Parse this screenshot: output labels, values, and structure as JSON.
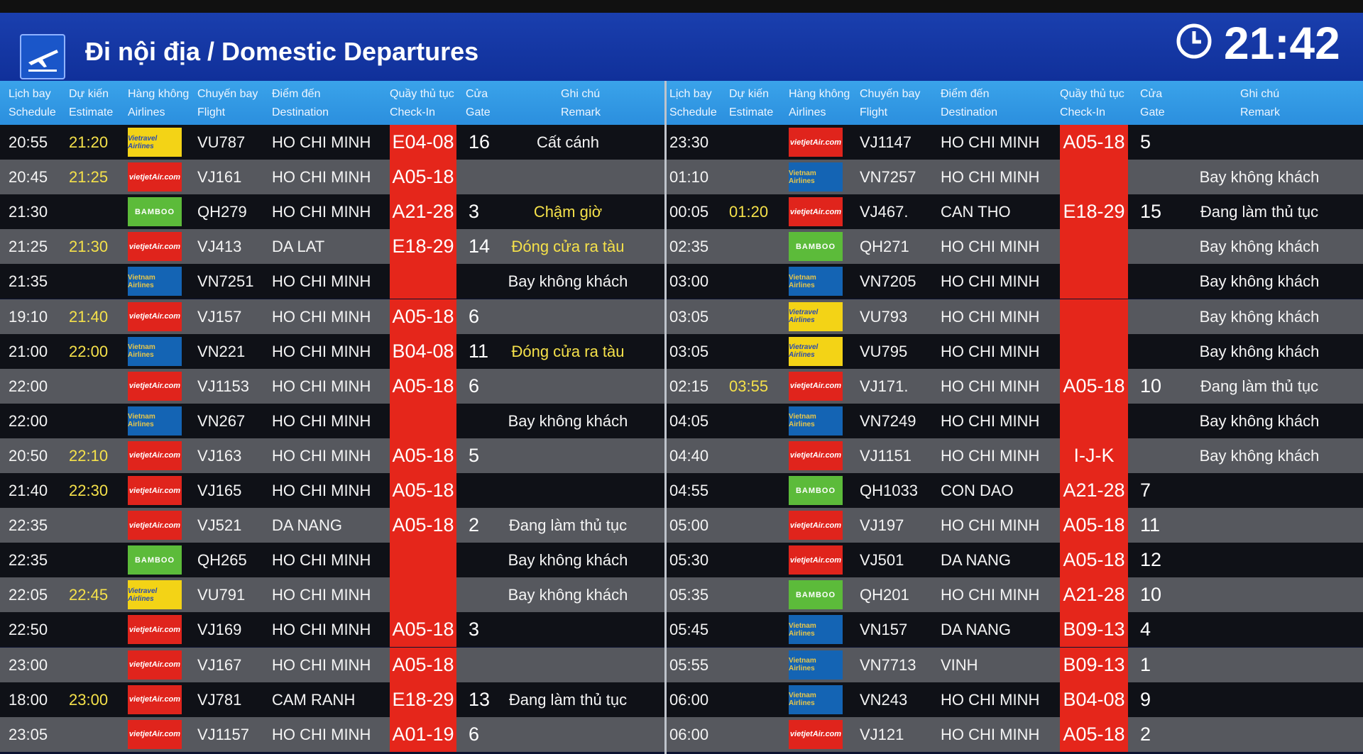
{
  "header": {
    "title": "Đi nội địa / Domestic Departures",
    "clock": "21:42"
  },
  "columns": {
    "schedule": [
      "Lịch bay",
      "Schedule"
    ],
    "estimate": [
      "Dự kiến",
      "Estimate"
    ],
    "airline": [
      "Hàng không",
      "Airlines"
    ],
    "flight": [
      "Chuyến bay",
      "Flight"
    ],
    "destination": [
      "Điểm đến",
      "Destination"
    ],
    "checkin": [
      "Quầy thủ tục",
      "Check-In"
    ],
    "gate": [
      "Cửa",
      "Gate"
    ],
    "remark": [
      "Ghi chú",
      "Remark"
    ]
  },
  "airline_logos": {
    "vj": "vietjetAir.com",
    "vn": "Vietnam Airlines",
    "qh": "BAMBOO",
    "vu": "Vietravel Airlines"
  },
  "colors": {
    "header_blue": "#10309a",
    "column_header_blue": "#2b8fde",
    "checkin_red": "#e5261b",
    "estimate_yellow": "#f5e14a",
    "row_dark": "#0f1117",
    "row_light": "#56585e"
  },
  "left_flights": [
    {
      "schedule": "20:55",
      "estimate": "21:20",
      "airline": "vu",
      "flight": "VU787",
      "destination": "HO CHI MINH",
      "checkin": "E04-08",
      "gate": "16",
      "remark": "Cất cánh",
      "remark_color": "white"
    },
    {
      "schedule": "20:45",
      "estimate": "21:25",
      "airline": "vj",
      "flight": "VJ161",
      "destination": "HO CHI MINH",
      "checkin": "A05-18",
      "gate": "",
      "remark": "",
      "remark_color": "white"
    },
    {
      "schedule": "21:30",
      "estimate": "",
      "airline": "qh",
      "flight": "QH279",
      "destination": "HO CHI MINH",
      "checkin": "A21-28",
      "gate": "3",
      "remark": "Chậm giờ",
      "remark_color": "yellow"
    },
    {
      "schedule": "21:25",
      "estimate": "21:30",
      "airline": "vj",
      "flight": "VJ413",
      "destination": "DA LAT",
      "checkin": "E18-29",
      "gate": "14",
      "remark": "Đóng cửa ra tàu",
      "remark_color": "yellow"
    },
    {
      "schedule": "21:35",
      "estimate": "",
      "airline": "vn",
      "flight": "VN7251",
      "destination": "HO CHI MINH",
      "checkin": "",
      "gate": "",
      "remark": "Bay không khách",
      "remark_color": "white"
    },
    {
      "schedule": "19:10",
      "estimate": "21:40",
      "airline": "vj",
      "flight": "VJ157",
      "destination": "HO CHI MINH",
      "checkin": "A05-18",
      "gate": "6",
      "remark": "",
      "remark_color": "white"
    },
    {
      "schedule": "21:00",
      "estimate": "22:00",
      "airline": "vn",
      "flight": "VN221",
      "destination": "HO CHI MINH",
      "checkin": "B04-08",
      "gate": "11",
      "remark": "Đóng cửa ra tàu",
      "remark_color": "yellow"
    },
    {
      "schedule": "22:00",
      "estimate": "",
      "airline": "vj",
      "flight": "VJ1153",
      "destination": "HO CHI MINH",
      "checkin": "A05-18",
      "gate": "6",
      "remark": "",
      "remark_color": "white"
    },
    {
      "schedule": "22:00",
      "estimate": "",
      "airline": "vn",
      "flight": "VN267",
      "destination": "HO CHI MINH",
      "checkin": "",
      "gate": "",
      "remark": "Bay không khách",
      "remark_color": "white"
    },
    {
      "schedule": "20:50",
      "estimate": "22:10",
      "airline": "vj",
      "flight": "VJ163",
      "destination": "HO CHI MINH",
      "checkin": "A05-18",
      "gate": "5",
      "remark": "",
      "remark_color": "white"
    },
    {
      "schedule": "21:40",
      "estimate": "22:30",
      "airline": "vj",
      "flight": "VJ165",
      "destination": "HO CHI MINH",
      "checkin": "A05-18",
      "gate": "",
      "remark": "",
      "remark_color": "white"
    },
    {
      "schedule": "22:35",
      "estimate": "",
      "airline": "vj",
      "flight": "VJ521",
      "destination": "DA NANG",
      "checkin": "A05-18",
      "gate": "2",
      "remark": "Đang làm thủ tục",
      "remark_color": "white"
    },
    {
      "schedule": "22:35",
      "estimate": "",
      "airline": "qh",
      "flight": "QH265",
      "destination": "HO CHI MINH",
      "checkin": "",
      "gate": "",
      "remark": "Bay không khách",
      "remark_color": "white"
    },
    {
      "schedule": "22:05",
      "estimate": "22:45",
      "airline": "vu",
      "flight": "VU791",
      "destination": "HO CHI MINH",
      "checkin": "",
      "gate": "",
      "remark": "Bay không khách",
      "remark_color": "white"
    },
    {
      "schedule": "22:50",
      "estimate": "",
      "airline": "vj",
      "flight": "VJ169",
      "destination": "HO CHI MINH",
      "checkin": "A05-18",
      "gate": "3",
      "remark": "",
      "remark_color": "white"
    },
    {
      "schedule": "23:00",
      "estimate": "",
      "airline": "vj",
      "flight": "VJ167",
      "destination": "HO CHI MINH",
      "checkin": "A05-18",
      "gate": "",
      "remark": "",
      "remark_color": "white"
    },
    {
      "schedule": "18:00",
      "estimate": "23:00",
      "airline": "vj",
      "flight": "VJ781",
      "destination": "CAM RANH",
      "checkin": "E18-29",
      "gate": "13",
      "remark": "Đang làm thủ tục",
      "remark_color": "white"
    },
    {
      "schedule": "23:05",
      "estimate": "",
      "airline": "vj",
      "flight": "VJ1157",
      "destination": "HO CHI MINH",
      "checkin": "A01-19",
      "gate": "6",
      "remark": "",
      "remark_color": "white"
    }
  ],
  "right_flights": [
    {
      "schedule": "23:30",
      "estimate": "",
      "airline": "vj",
      "flight": "VJ1147",
      "destination": "HO CHI MINH",
      "checkin": "A05-18",
      "gate": "5",
      "remark": "",
      "remark_color": "white"
    },
    {
      "schedule": "01:10",
      "estimate": "",
      "airline": "vn",
      "flight": "VN7257",
      "destination": "HO CHI MINH",
      "checkin": "",
      "gate": "",
      "remark": "Bay không khách",
      "remark_color": "white"
    },
    {
      "schedule": "00:05",
      "estimate": "01:20",
      "airline": "vj",
      "flight": "VJ467.",
      "destination": "CAN THO",
      "checkin": "E18-29",
      "gate": "15",
      "remark": "Đang làm thủ tục",
      "remark_color": "white"
    },
    {
      "schedule": "02:35",
      "estimate": "",
      "airline": "qh",
      "flight": "QH271",
      "destination": "HO CHI MINH",
      "checkin": "",
      "gate": "",
      "remark": "Bay không khách",
      "remark_color": "white"
    },
    {
      "schedule": "03:00",
      "estimate": "",
      "airline": "vn",
      "flight": "VN7205",
      "destination": "HO CHI MINH",
      "checkin": "",
      "gate": "",
      "remark": "Bay không khách",
      "remark_color": "white"
    },
    {
      "schedule": "03:05",
      "estimate": "",
      "airline": "vu",
      "flight": "VU793",
      "destination": "HO CHI MINH",
      "checkin": "",
      "gate": "",
      "remark": "Bay không khách",
      "remark_color": "white"
    },
    {
      "schedule": "03:05",
      "estimate": "",
      "airline": "vu",
      "flight": "VU795",
      "destination": "HO CHI MINH",
      "checkin": "",
      "gate": "",
      "remark": "Bay không khách",
      "remark_color": "white"
    },
    {
      "schedule": "02:15",
      "estimate": "03:55",
      "airline": "vj",
      "flight": "VJ171.",
      "destination": "HO CHI MINH",
      "checkin": "A05-18",
      "gate": "10",
      "remark": "Đang làm thủ tục",
      "remark_color": "white"
    },
    {
      "schedule": "04:05",
      "estimate": "",
      "airline": "vn",
      "flight": "VN7249",
      "destination": "HO CHI MINH",
      "checkin": "",
      "gate": "",
      "remark": "Bay không khách",
      "remark_color": "white"
    },
    {
      "schedule": "04:40",
      "estimate": "",
      "airline": "vj",
      "flight": "VJ1151",
      "destination": "HO CHI MINH",
      "checkin": "I-J-K",
      "gate": "",
      "remark": "Bay không khách",
      "remark_color": "white"
    },
    {
      "schedule": "04:55",
      "estimate": "",
      "airline": "qh",
      "flight": "QH1033",
      "destination": "CON DAO",
      "checkin": "A21-28",
      "gate": "7",
      "remark": "",
      "remark_color": "white"
    },
    {
      "schedule": "05:00",
      "estimate": "",
      "airline": "vj",
      "flight": "VJ197",
      "destination": "HO CHI MINH",
      "checkin": "A05-18",
      "gate": "11",
      "remark": "",
      "remark_color": "white"
    },
    {
      "schedule": "05:30",
      "estimate": "",
      "airline": "vj",
      "flight": "VJ501",
      "destination": "DA NANG",
      "checkin": "A05-18",
      "gate": "12",
      "remark": "",
      "remark_color": "white"
    },
    {
      "schedule": "05:35",
      "estimate": "",
      "airline": "qh",
      "flight": "QH201",
      "destination": "HO CHI MINH",
      "checkin": "A21-28",
      "gate": "10",
      "remark": "",
      "remark_color": "white"
    },
    {
      "schedule": "05:45",
      "estimate": "",
      "airline": "vn",
      "flight": "VN157",
      "destination": "DA NANG",
      "checkin": "B09-13",
      "gate": "4",
      "remark": "",
      "remark_color": "white"
    },
    {
      "schedule": "05:55",
      "estimate": "",
      "airline": "vn",
      "flight": "VN7713",
      "destination": "VINH",
      "checkin": "B09-13",
      "gate": "1",
      "remark": "",
      "remark_color": "white"
    },
    {
      "schedule": "06:00",
      "estimate": "",
      "airline": "vn",
      "flight": "VN243",
      "destination": "HO CHI MINH",
      "checkin": "B04-08",
      "gate": "9",
      "remark": "",
      "remark_color": "white"
    },
    {
      "schedule": "06:00",
      "estimate": "",
      "airline": "vj",
      "flight": "VJ121",
      "destination": "HO CHI MINH",
      "checkin": "A05-18",
      "gate": "2",
      "remark": "",
      "remark_color": "white"
    }
  ]
}
